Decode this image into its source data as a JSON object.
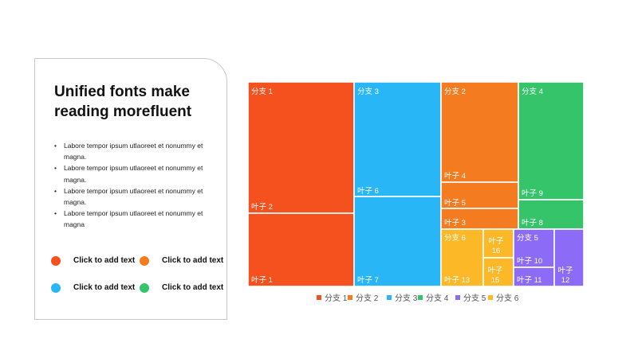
{
  "panel": {
    "title": "Unified fonts make reading morefluent",
    "bullets": [
      "Labore tempor ipsum utlaoreet et nonummy et magna.",
      "Labore tempor ipsum utlaoreet et nonummy et magna.",
      "Labore tempor ipsum utlaoreet et nonummy et magna.",
      "Labore tempor ipsum utlaoreet et nonummy et magna"
    ],
    "legend": [
      {
        "label": "Click to add text",
        "color": "#f4511e"
      },
      {
        "label": "Click to add text",
        "color": "#f47b20"
      },
      {
        "label": "Click to add text",
        "color": "#29b6f6"
      },
      {
        "label": "Click to add text",
        "color": "#36c46b"
      }
    ]
  },
  "chart_data": {
    "type": "treemap",
    "series": [
      {
        "name": "分支 1",
        "color": "#f4511e",
        "leaves": [
          {
            "name": "叶子 2",
            "value": 48
          },
          {
            "name": "叶子 1",
            "value": 35
          }
        ]
      },
      {
        "name": "分支 3",
        "color": "#29b6f6",
        "leaves": [
          {
            "name": "叶子 6",
            "value": 56
          },
          {
            "name": "叶子 7",
            "value": 43
          }
        ]
      },
      {
        "name": "分支 2",
        "color": "#f47b20",
        "leaves": [
          {
            "name": "叶子 4",
            "value": 42
          },
          {
            "name": "叶子 5",
            "value": 11
          },
          {
            "name": "叶子 3",
            "value": 9
          }
        ]
      },
      {
        "name": "分支 4",
        "color": "#36c46b",
        "leaves": [
          {
            "name": "叶子 9",
            "value": 36
          },
          {
            "name": "叶子 8",
            "value": 9
          }
        ]
      },
      {
        "name": "分支 6",
        "color": "#fdb827",
        "leaves": [
          {
            "name": "叶子 13",
            "value": 14
          },
          {
            "name": "叶子 16",
            "value": 4
          },
          {
            "name": "叶子 15",
            "value": 4
          }
        ]
      },
      {
        "name": "分支 5",
        "color": "#8c6cf6",
        "leaves": [
          {
            "name": "叶子 10",
            "value": 5
          },
          {
            "name": "叶子 11",
            "value": 3
          },
          {
            "name": "叶子 12",
            "value": 8
          }
        ]
      }
    ],
    "legend": [
      "分支 1",
      "分支 2",
      "分支 3",
      "分支 4",
      "分支 5",
      "分支 6"
    ],
    "legend_colors": [
      "#f4511e",
      "#f47b20",
      "#29b6f6",
      "#36c46b",
      "#8c6cf6",
      "#fdb827"
    ],
    "legend_position": "bottom"
  }
}
